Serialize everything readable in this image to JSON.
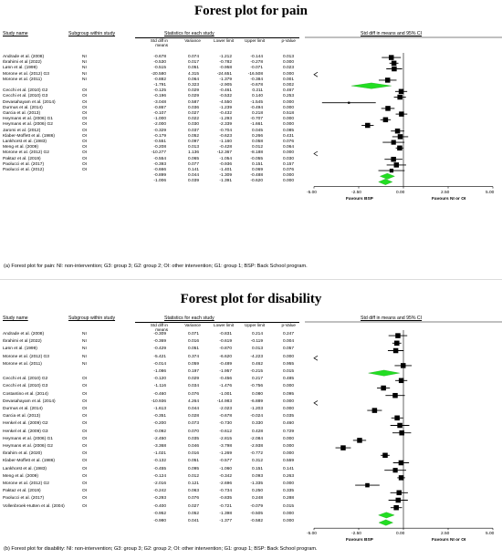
{
  "panels": [
    {
      "title": "Forest plot for pain",
      "caption": "(a) Forest plot for pain: NI: non-intervention; G3: group 3; G2: group 2; OI: other intervention; G1: group 1; BSP: Back School program.",
      "headers": {
        "study": "Study name",
        "subgroup": "Subgroup within study",
        "stats": "Statistics for each study",
        "plot": "Std diff in means and 95% CI"
      },
      "subheaders": {
        "smd": "Std diff in means",
        "var": "Variance",
        "lower": "Lower limit",
        "upper": "Upper limit",
        "p": "p-Value"
      },
      "favours": {
        "left": "Favours BSP",
        "right": "Favours NI or OI"
      },
      "chart_data": {
        "type": "forest",
        "xlim": [
          -5,
          5
        ],
        "ticks": [
          "-5.00",
          "-2.50",
          "0.00",
          "2.50",
          "5.00"
        ],
        "rows": [
          {
            "study": "Andrade et al. (2008)",
            "sub": "NI",
            "smd": "-0.678",
            "var": "0.074",
            "lo": "-1.212",
            "hi": "-0.144",
            "p": "0.013",
            "kind": "study",
            "m": -0.678,
            "l": -1.212,
            "u": -0.144
          },
          {
            "study": "Ibrahimi et al (2022)",
            "sub": "NI",
            "smd": "-0.530",
            "var": "0.017",
            "lo": "-0.782",
            "hi": "-0.278",
            "p": "0.000",
            "kind": "study",
            "m": -0.53,
            "l": -0.782,
            "u": -0.278
          },
          {
            "study": "Lønn et al. (1999)",
            "sub": "NI",
            "smd": "-0.515",
            "var": "0.051",
            "lo": "-0.958",
            "hi": "-0.071",
            "p": "0.023",
            "kind": "study",
            "m": -0.515,
            "l": -0.958,
            "u": -0.071
          },
          {
            "study": "Morone et al. (2012) G3",
            "sub": "NI",
            "smd": "-20.580",
            "var": "4.315",
            "lo": "-24.651",
            "hi": "-16.508",
            "p": "0.000",
            "kind": "study",
            "m": -20.58,
            "l": -24.651,
            "u": -16.508
          },
          {
            "study": "Morone et al. (2011)",
            "sub": "NI",
            "smd": "-0.882",
            "var": "0.064",
            "lo": "-1.379",
            "hi": "-0.384",
            "p": "0.001",
            "kind": "study",
            "m": -0.882,
            "l": -1.379,
            "u": -0.384
          },
          {
            "study": "",
            "sub": "",
            "smd": "-1.791",
            "var": "0.323",
            "lo": "-2.905",
            "hi": "-0.678",
            "p": "0.002",
            "kind": "sub",
            "m": -1.791,
            "l": -2.905,
            "u": -0.678
          },
          {
            "study": "Cecchi et al. (2010) G2",
            "sub": "OI",
            "smd": "-0.125",
            "var": "0.029",
            "lo": "-0.461",
            "hi": "0.211",
            "p": "0.467",
            "kind": "study",
            "m": -0.125,
            "l": -0.461,
            "u": 0.211
          },
          {
            "study": "Cecchi et al. (2010) G3",
            "sub": "OI",
            "smd": "-0.196",
            "var": "0.029",
            "lo": "-0.532",
            "hi": "0.140",
            "p": "0.253",
            "kind": "study",
            "m": -0.196,
            "l": -0.532,
            "u": 0.14
          },
          {
            "study": "Devasahayam et al. (2014)",
            "sub": "OI",
            "smd": "-3.048",
            "var": "0.587",
            "lo": "-4.550",
            "hi": "-1.545",
            "p": "0.000",
            "kind": "study",
            "m": -3.048,
            "l": -4.55,
            "u": -1.545
          },
          {
            "study": "Durmus et al. (2014)",
            "sub": "OI",
            "smd": "-0.867",
            "var": "0.036",
            "lo": "-1.239",
            "hi": "-0.494",
            "p": "0.000",
            "kind": "study",
            "m": -0.867,
            "l": -1.239,
            "u": -0.494
          },
          {
            "study": "Garcia et al. (2013)",
            "sub": "OI",
            "smd": "-0.107",
            "var": "0.027",
            "lo": "-0.432",
            "hi": "0.218",
            "p": "0.518",
            "kind": "study",
            "m": -0.107,
            "l": -0.432,
            "u": 0.218
          },
          {
            "study": "Heymans et al. (2006) G1",
            "sub": "OI",
            "smd": "-1.000",
            "var": "0.022",
            "lo": "-1.293",
            "hi": "-0.707",
            "p": "0.000",
            "kind": "study",
            "m": -1.0,
            "l": -1.293,
            "u": -0.707
          },
          {
            "study": "Heymans et al. (2006) G2",
            "sub": "OI",
            "smd": "-2.000",
            "var": "0.030",
            "lo": "-2.339",
            "hi": "-1.661",
            "p": "0.000",
            "kind": "study",
            "m": -2.0,
            "l": -2.339,
            "u": -1.661
          },
          {
            "study": "Jaromi et al. (2012)",
            "sub": "OI",
            "smd": "-0.329",
            "var": "0.037",
            "lo": "-0.704",
            "hi": "0.045",
            "p": "0.085",
            "kind": "study",
            "m": -0.329,
            "l": -0.704,
            "u": 0.045
          },
          {
            "study": "Klaber-Moffett et al. (1986)",
            "sub": "OI",
            "smd": "-0.179",
            "var": "0.052",
            "lo": "-0.623",
            "hi": "0.266",
            "p": "0.431",
            "kind": "study",
            "m": -0.179,
            "l": -0.623,
            "u": 0.266
          },
          {
            "study": "Lankhorst et al. (1983)",
            "sub": "OI",
            "smd": "-0.551",
            "var": "0.097",
            "lo": "-1.160",
            "hi": "0.058",
            "p": "0.076",
            "kind": "study",
            "m": -0.551,
            "l": -1.16,
            "u": 0.058
          },
          {
            "study": "Meng et al. (2009)",
            "sub": "OI",
            "smd": "-0.208",
            "var": "0.013",
            "lo": "-0.428",
            "hi": "0.012",
            "p": "0.064",
            "kind": "study",
            "m": -0.208,
            "l": -0.428,
            "u": 0.012
          },
          {
            "study": "Morone et al. (2012) G2",
            "sub": "OI",
            "smd": "-10.277",
            "var": "1.136",
            "lo": "-12.367",
            "hi": "-8.188",
            "p": "0.000",
            "kind": "study",
            "m": -10.277,
            "l": -12.367,
            "u": -8.188
          },
          {
            "study": "Paktaz et al. (2019)",
            "sub": "OI",
            "smd": "-0.554",
            "var": "0.065",
            "lo": "-1.054",
            "hi": "-0.055",
            "p": "0.030",
            "kind": "study",
            "m": -0.554,
            "l": -1.054,
            "u": -0.055
          },
          {
            "study": "Paolucci et al. (2017)",
            "sub": "OI",
            "smd": "-0.393",
            "var": "0.077",
            "lo": "-0.936",
            "hi": "0.151",
            "p": "0.157",
            "kind": "study",
            "m": -0.393,
            "l": -0.936,
            "u": 0.151
          },
          {
            "study": "Paolucci et al. (2012)",
            "sub": "OI",
            "smd": "-0.666",
            "var": "0.141",
            "lo": "-1.401",
            "hi": "0.069",
            "p": "0.076",
            "kind": "study",
            "m": -0.666,
            "l": -1.401,
            "u": 0.069
          },
          {
            "study": "",
            "sub": "",
            "smd": "-0.899",
            "var": "0.044",
            "lo": "-1.309",
            "hi": "-0.488",
            "p": "0.000",
            "kind": "sub",
            "m": -0.899,
            "l": -1.309,
            "u": -0.488
          },
          {
            "study": "",
            "sub": "",
            "smd": "-1.006",
            "var": "0.039",
            "lo": "-1.391",
            "hi": "-0.620",
            "p": "0.000",
            "kind": "overall",
            "m": -1.006,
            "l": -1.391,
            "u": -0.62
          }
        ]
      }
    },
    {
      "title": "Forest plot for disability",
      "caption": "(b) Forest plot for disability: NI: non-intervention; G3: group 3; G2: group 2; OI: other intervention; G1: group 1; BSP: Back School program.",
      "headers": {
        "study": "Study name",
        "subgroup": "Subgroup within study",
        "stats": "Statistics for each study",
        "plot": "Std diff in means and 95% CI"
      },
      "subheaders": {
        "smd": "Std diff in means",
        "var": "Variance",
        "lower": "Lower limit",
        "upper": "Upper limit",
        "p": "p-Value"
      },
      "favours": {
        "left": "Favours BSP",
        "right": "Favours NI or OI"
      },
      "chart_data": {
        "type": "forest",
        "xlim": [
          -5,
          5
        ],
        "ticks": [
          "-5.00",
          "-2.50",
          "0.00",
          "2.50",
          "5.00"
        ],
        "rows": [
          {
            "study": "Andrade et al. (2008)",
            "sub": "NI",
            "smd": "-0.309",
            "var": "0.071",
            "lo": "-0.831",
            "hi": "0.214",
            "p": "0.247",
            "kind": "study",
            "m": -0.309,
            "l": -0.831,
            "u": 0.214
          },
          {
            "study": "Ibrahimi et al (2022)",
            "sub": "NI",
            "smd": "-0.369",
            "var": "0.016",
            "lo": "-0.619",
            "hi": "-0.119",
            "p": "0.004",
            "kind": "study",
            "m": -0.369,
            "l": -0.619,
            "u": -0.119
          },
          {
            "study": "Lønn et al. (1999)",
            "sub": "NI",
            "smd": "-0.429",
            "var": "0.051",
            "lo": "-0.870",
            "hi": "0.013",
            "p": "0.057",
            "kind": "study",
            "m": -0.429,
            "l": -0.87,
            "u": 0.013
          },
          {
            "study": "Morone et al. (2012) G3",
            "sub": "NI",
            "smd": "-5.421",
            "var": "0.374",
            "lo": "-6.620",
            "hi": "-4.223",
            "p": "0.000",
            "kind": "study",
            "m": -5.421,
            "l": -6.62,
            "u": -4.223
          },
          {
            "study": "Morone et al. (2011)",
            "sub": "NI",
            "smd": "-0.014",
            "var": "0.059",
            "lo": "-0.489",
            "hi": "0.462",
            "p": "0.955",
            "kind": "study",
            "m": -0.014,
            "l": -0.489,
            "u": 0.462
          },
          {
            "study": "",
            "sub": "",
            "smd": "-1.086",
            "var": "0.197",
            "lo": "-1.957",
            "hi": "-0.215",
            "p": "0.015",
            "kind": "sub",
            "m": -1.086,
            "l": -1.957,
            "u": -0.215
          },
          {
            "study": "Cecchi et al. (2010) G2",
            "sub": "OI",
            "smd": "-0.120",
            "var": "0.029",
            "lo": "-0.456",
            "hi": "0.217",
            "p": "0.485",
            "kind": "study",
            "m": -0.12,
            "l": -0.456,
            "u": 0.217
          },
          {
            "study": "Cecchi et al. (2010) G3",
            "sub": "OI",
            "smd": "-1.116",
            "var": "0.034",
            "lo": "-1.476",
            "hi": "-0.756",
            "p": "0.000",
            "kind": "study",
            "m": -1.116,
            "l": -1.476,
            "u": -0.756
          },
          {
            "study": "Costantino et al. (2014)",
            "sub": "OI",
            "smd": "-0.460",
            "var": "0.076",
            "lo": "-1.001",
            "hi": "0.080",
            "p": "0.095",
            "kind": "study",
            "m": -0.46,
            "l": -1.001,
            "u": 0.08
          },
          {
            "study": "Devasahayam et al. (2014)",
            "sub": "OI",
            "smd": "-10.936",
            "var": "4.264",
            "lo": "-14.983",
            "hi": "-6.889",
            "p": "0.000",
            "kind": "study",
            "m": -10.936,
            "l": -14.983,
            "u": -6.889
          },
          {
            "study": "Durmus et al. (2014)",
            "sub": "OI",
            "smd": "-1.613",
            "var": "0.044",
            "lo": "-2.023",
            "hi": "-1.203",
            "p": "0.000",
            "kind": "study",
            "m": -1.613,
            "l": -2.023,
            "u": -1.203
          },
          {
            "study": "Garcia et al. (2013)",
            "sub": "OI",
            "smd": "-0.351",
            "var": "0.028",
            "lo": "-0.678",
            "hi": "-0.024",
            "p": "0.035",
            "kind": "study",
            "m": -0.351,
            "l": -0.678,
            "u": -0.024
          },
          {
            "study": "Henkel et al. (2009) G2",
            "sub": "OI",
            "smd": "-0.200",
            "var": "0.073",
            "lo": "-0.730",
            "hi": "0.330",
            "p": "0.460",
            "kind": "study",
            "m": -0.2,
            "l": -0.73,
            "u": 0.33
          },
          {
            "study": "Henkel et al. (2009) G3",
            "sub": "OI",
            "smd": "-0.092",
            "var": "0.070",
            "lo": "-0.612",
            "hi": "0.428",
            "p": "0.729",
            "kind": "study",
            "m": -0.092,
            "l": -0.612,
            "u": 0.428
          },
          {
            "study": "Heymans et al. (2006) G1",
            "sub": "OI",
            "smd": "-2.450",
            "var": "0.035",
            "lo": "-2.815",
            "hi": "-2.084",
            "p": "0.000",
            "kind": "study",
            "m": -2.45,
            "l": -2.815,
            "u": -2.084
          },
          {
            "study": "Heymans et al. (2006) G2",
            "sub": "OI",
            "smd": "-3.368",
            "var": "0.046",
            "lo": "-3.798",
            "hi": "-2.938",
            "p": "0.000",
            "kind": "study",
            "m": -3.368,
            "l": -3.798,
            "u": -2.938
          },
          {
            "study": "Ibrahim et al. (2020)",
            "sub": "OI",
            "smd": "-1.021",
            "var": "0.016",
            "lo": "-1.269",
            "hi": "-0.772",
            "p": "0.000",
            "kind": "study",
            "m": -1.021,
            "l": -1.269,
            "u": -0.772
          },
          {
            "study": "Klaber-Moffett et al. (1986)",
            "sub": "OI",
            "smd": "-0.132",
            "var": "0.051",
            "lo": "-0.577",
            "hi": "0.312",
            "p": "0.559",
            "kind": "study",
            "m": -0.132,
            "l": -0.577,
            "u": 0.312
          },
          {
            "study": "Lankhorst et al. (1983)",
            "sub": "OI",
            "smd": "-0.455",
            "var": "0.095",
            "lo": "-1.060",
            "hi": "0.151",
            "p": "0.141",
            "kind": "study",
            "m": -0.455,
            "l": -1.06,
            "u": 0.151
          },
          {
            "study": "Meng et al. (2009)",
            "sub": "OI",
            "smd": "-0.124",
            "var": "0.012",
            "lo": "-0.342",
            "hi": "0.093",
            "p": "0.263",
            "kind": "study",
            "m": -0.124,
            "l": -0.342,
            "u": 0.093
          },
          {
            "study": "Morone et al. (2012) G2",
            "sub": "OI",
            "smd": "-2.016",
            "var": "0.121",
            "lo": "-2.696",
            "hi": "-1.335",
            "p": "0.000",
            "kind": "study",
            "m": -2.016,
            "l": -2.696,
            "u": -1.335
          },
          {
            "study": "Paktaz et al. (2019)",
            "sub": "OI",
            "smd": "-0.242",
            "var": "0.063",
            "lo": "-0.734",
            "hi": "0.250",
            "p": "0.335",
            "kind": "study",
            "m": -0.242,
            "l": -0.734,
            "u": 0.25
          },
          {
            "study": "Paolucci et al. (2017)",
            "sub": "OI",
            "smd": "-0.293",
            "var": "0.076",
            "lo": "-0.835",
            "hi": "0.248",
            "p": "0.288",
            "kind": "study",
            "m": -0.293,
            "l": -0.835,
            "u": 0.248
          },
          {
            "study": "Vollenbroek-Hutten et al. (2004)",
            "sub": "OI",
            "smd": "-0.400",
            "var": "0.027",
            "lo": "-0.721",
            "hi": "-0.079",
            "p": "0.015",
            "kind": "study",
            "m": -0.4,
            "l": -0.721,
            "u": -0.079
          },
          {
            "study": "",
            "sub": "",
            "smd": "-0.952",
            "var": "0.052",
            "lo": "-1.398",
            "hi": "-0.505",
            "p": "0.000",
            "kind": "sub",
            "m": -0.952,
            "l": -1.398,
            "u": -0.505
          },
          {
            "study": "",
            "sub": "",
            "smd": "-0.980",
            "var": "0.041",
            "lo": "-1.377",
            "hi": "-0.582",
            "p": "0.000",
            "kind": "overall",
            "m": -0.98,
            "l": -1.377,
            "u": -0.582
          }
        ]
      }
    }
  ]
}
